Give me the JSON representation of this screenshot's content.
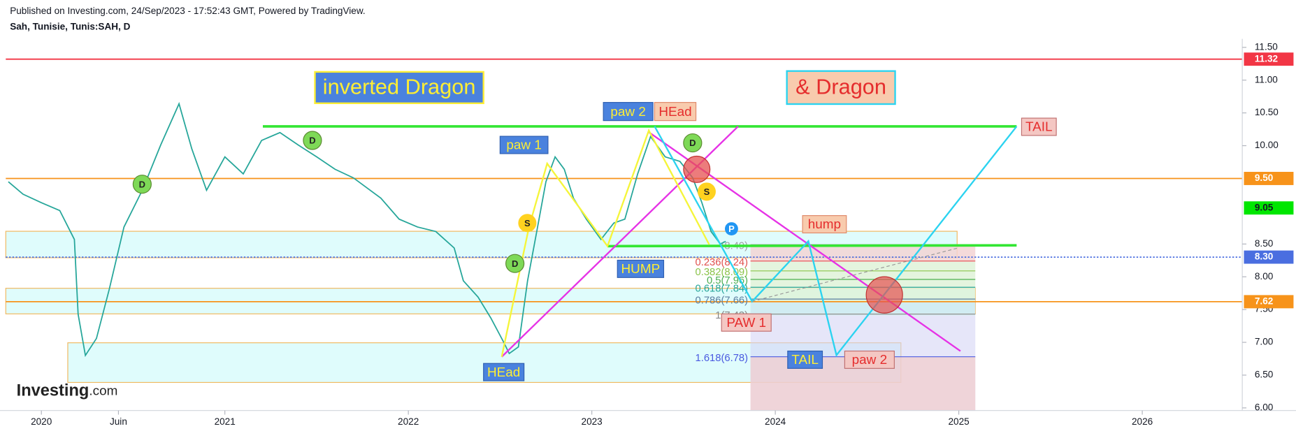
{
  "header": {
    "published": "Published on Investing.com, 24/Sep/2023 - 17:52:43 GMT, Powered by TradingView.",
    "symbol": "Sah, Tunisie, Tunis:SAH, D",
    "logo": "Investing",
    "logo_suffix": ".com"
  },
  "chart_data": {
    "type": "line",
    "x": [
      2019.82,
      2019.9,
      2020.0,
      2020.1,
      2020.18,
      2020.2,
      2020.24,
      2020.3,
      2020.37,
      2020.45,
      2020.55,
      2020.65,
      2020.75,
      2020.82,
      2020.9,
      2021.0,
      2021.1,
      2021.2,
      2021.3,
      2021.4,
      2021.5,
      2021.6,
      2021.7,
      2021.85,
      2021.95,
      2022.05,
      2022.15,
      2022.25,
      2022.3,
      2022.38,
      2022.45,
      2022.52,
      2022.55,
      2022.6,
      2022.65,
      2022.7,
      2022.75,
      2022.8,
      2022.85,
      2022.9,
      2022.97,
      2023.05,
      2023.12,
      2023.18,
      2023.25,
      2023.32,
      2023.4,
      2023.48,
      2023.55,
      2023.6,
      2023.65,
      2023.7,
      2023.73
    ],
    "series": [
      {
        "color": "#26a69a",
        "values": [
          9.45,
          9.26,
          9.13,
          9.01,
          8.57,
          7.43,
          6.8,
          7.06,
          7.81,
          8.76,
          9.32,
          10.01,
          10.64,
          9.95,
          9.32,
          9.83,
          9.57,
          10.08,
          10.2,
          10.01,
          9.83,
          9.64,
          9.51,
          9.2,
          8.88,
          8.76,
          8.69,
          8.44,
          7.94,
          7.69,
          7.37,
          7.0,
          6.83,
          6.93,
          7.94,
          8.69,
          9.45,
          9.83,
          9.64,
          9.2,
          8.88,
          8.57,
          8.82,
          8.88,
          9.57,
          10.14,
          9.83,
          9.76,
          9.51,
          9.13,
          8.69,
          8.5,
          8.54
        ]
      }
    ],
    "xlim": [
      2019.806,
      2026.545
    ],
    "xticks": [
      2020,
      {
        "value": 2020.42,
        "label": "Juin"
      },
      2021,
      2022,
      2023,
      2024,
      2025,
      2026
    ],
    "ylim": [
      5.96,
      11.63
    ],
    "yticks": [
      {
        "value": 6,
        "label": "6.00"
      },
      {
        "value": 6.5,
        "label": "6.50"
      },
      {
        "value": 7,
        "label": "7.00"
      },
      {
        "value": 7.5,
        "label": "7.50"
      },
      {
        "value": 8,
        "label": "8.00"
      },
      {
        "value": 8.5,
        "label": "8.50"
      },
      {
        "value": 10,
        "label": "10.00"
      },
      {
        "value": 10.5,
        "label": "10.50"
      },
      {
        "value": 11,
        "label": "11.00"
      },
      {
        "value": 11.5,
        "label": "11.50"
      }
    ],
    "price_levels": [
      {
        "value": 11.32,
        "label": "11.32",
        "color": "#f23645",
        "line": true
      },
      {
        "value": 9.5,
        "label": "9.50",
        "color": "#f7931a",
        "line": true
      },
      {
        "value": 9.05,
        "label": "9.05",
        "color": "#00e600",
        "line": false
      },
      {
        "value": 8.3,
        "label": "8.30",
        "color": "#4a6ee0",
        "line": true
      },
      {
        "value": 7.62,
        "label": "7.62",
        "color": "#f7931a",
        "line": true
      }
    ],
    "fib_levels": [
      {
        "value": 8.49,
        "label": "(8.49)",
        "color": "#9e9e9e"
      },
      {
        "value": 8.24,
        "label": "0.236(8.24)",
        "color": "#e0504e"
      },
      {
        "value": 8.09,
        "label": "0.382(8.09)",
        "color": "#8bc34a"
      },
      {
        "value": 7.96,
        "label": "0.5(7.96)",
        "color": "#4caf50"
      },
      {
        "value": 7.84,
        "label": "0.618(7.84)",
        "color": "#26a69a"
      },
      {
        "value": 7.66,
        "label": "0.786(7.66)",
        "color": "#5b7fa0"
      },
      {
        "value": 7.43,
        "label": "1(7.43)",
        "color": "#888888"
      },
      {
        "value": 6.78,
        "label": "1.618(6.78)",
        "color": "#4a5ae0"
      }
    ],
    "annotations": [
      "inverted Dragon",
      "& Dragon",
      "paw 2",
      "HEad",
      "paw 1",
      "TAIL",
      "hump",
      "HUMP",
      "HEad",
      "PAW 1",
      "TAIL",
      "paw 2"
    ],
    "markers": [
      "D",
      "D",
      "D",
      "D",
      "S",
      "S",
      "P"
    ]
  }
}
